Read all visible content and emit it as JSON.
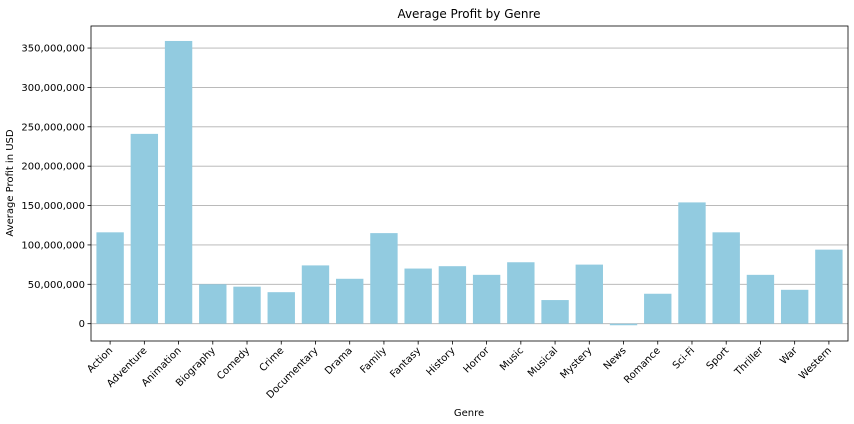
{
  "chart_data": {
    "type": "bar",
    "title": "Average Profit by Genre",
    "xlabel": "Genre",
    "ylabel": "Average Profit in USD",
    "categories": [
      "Action",
      "Adventure",
      "Animation",
      "Biography",
      "Comedy",
      "Crime",
      "Documentary",
      "Drama",
      "Family",
      "Fantasy",
      "History",
      "Horror",
      "Music",
      "Musical",
      "Mystery",
      "News",
      "Romance",
      "Sci-Fi",
      "Sport",
      "Thriller",
      "War",
      "Western"
    ],
    "values": [
      116000000,
      241000000,
      359000000,
      50000000,
      47000000,
      40000000,
      74000000,
      57000000,
      115000000,
      70000000,
      73000000,
      62000000,
      78000000,
      30000000,
      75000000,
      -2000000,
      38000000,
      154000000,
      116000000,
      62000000,
      43000000,
      94000000
    ],
    "ylim": [
      -22000000,
      378000000
    ],
    "yticks": [
      0,
      50000000,
      100000000,
      150000000,
      200000000,
      250000000,
      300000000,
      350000000
    ],
    "ytick_labels": [
      "0",
      "50,000,000",
      "100,000,000",
      "150,000,000",
      "200,000,000",
      "250,000,000",
      "300,000,000",
      "350,000,000"
    ],
    "grid": "horizontal",
    "bar_color": "#92cbe0",
    "grid_color": "#b0b0b0"
  }
}
